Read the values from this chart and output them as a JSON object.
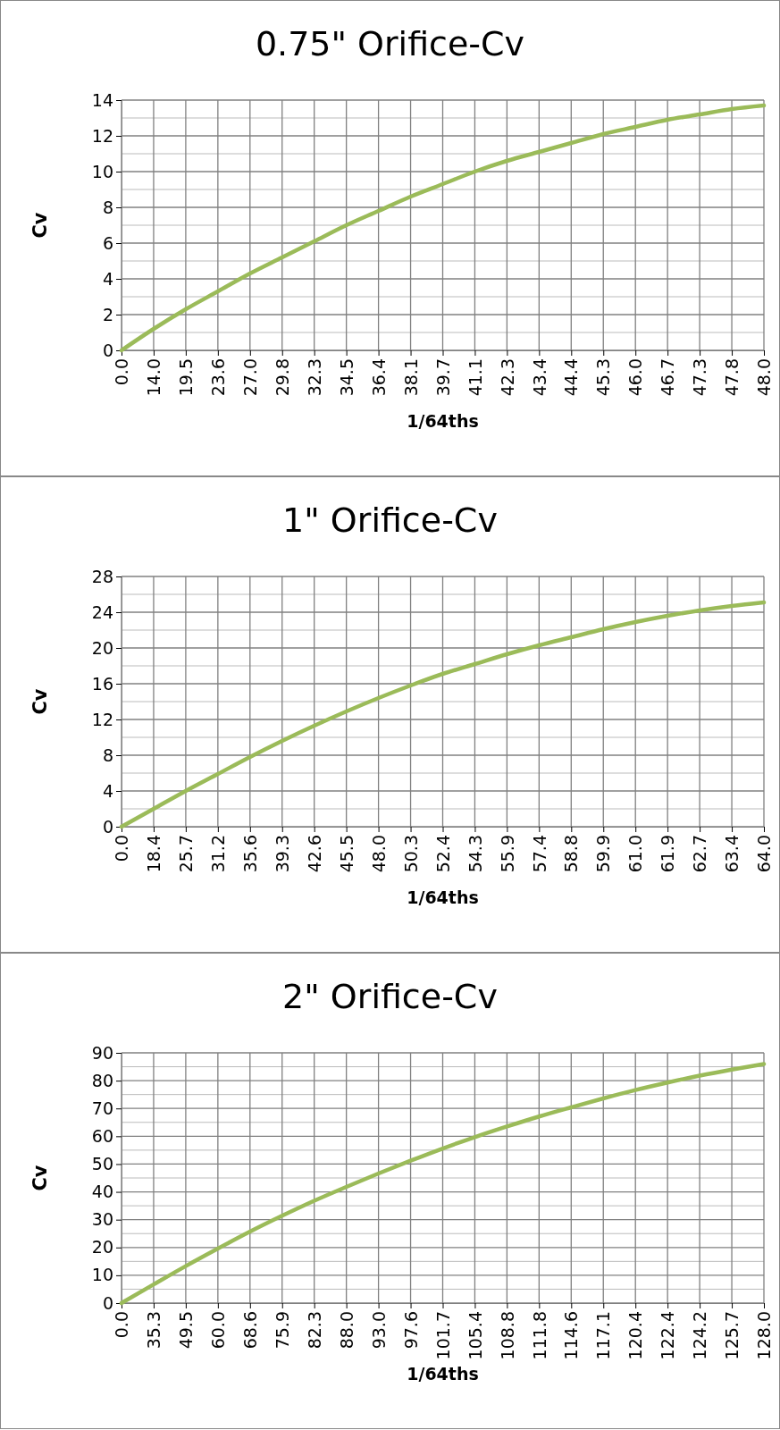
{
  "chart_data": [
    {
      "type": "line",
      "title": "0.75\" Orifice-Cv",
      "xlabel": "1/64ths",
      "ylabel": "Cv",
      "categories": [
        "0.0",
        "14.0",
        "19.5",
        "23.6",
        "27.0",
        "29.8",
        "32.3",
        "34.5",
        "36.4",
        "38.1",
        "39.7",
        "41.1",
        "42.3",
        "43.4",
        "44.4",
        "45.3",
        "46.0",
        "46.7",
        "47.3",
        "47.8",
        "48.0"
      ],
      "series": [
        {
          "color": "#9bbb59",
          "values": [
            0,
            1.2,
            2.3,
            3.3,
            4.3,
            5.2,
            6.1,
            7.0,
            7.8,
            8.6,
            9.3,
            10.0,
            10.6,
            11.1,
            11.6,
            12.1,
            12.5,
            12.9,
            13.2,
            13.5,
            13.7
          ]
        }
      ],
      "ylim": [
        0,
        14
      ],
      "yticks": [
        0,
        2,
        4,
        6,
        8,
        10,
        12,
        14
      ],
      "grid": true,
      "marker": "none",
      "line_style": "solid"
    },
    {
      "type": "line",
      "title": "1\" Orifice-Cv",
      "xlabel": "1/64ths",
      "ylabel": "Cv",
      "categories": [
        "0.0",
        "18.4",
        "25.7",
        "31.2",
        "35.6",
        "39.3",
        "42.6",
        "45.5",
        "48.0",
        "50.3",
        "52.4",
        "54.3",
        "55.9",
        "57.4",
        "58.8",
        "59.9",
        "61.0",
        "61.9",
        "62.7",
        "63.4",
        "64.0"
      ],
      "series": [
        {
          "color": "#9bbb59",
          "values": [
            0,
            2.0,
            4.0,
            5.9,
            7.8,
            9.6,
            11.3,
            12.9,
            14.4,
            15.8,
            17.1,
            18.2,
            19.3,
            20.3,
            21.2,
            22.1,
            22.9,
            23.6,
            24.2,
            24.7,
            25.1
          ]
        }
      ],
      "ylim": [
        0,
        28
      ],
      "yticks": [
        0,
        4,
        8,
        12,
        16,
        20,
        24,
        28
      ],
      "grid": true,
      "marker": "none",
      "line_style": "solid"
    },
    {
      "type": "line",
      "title": "2\" Orifice-Cv",
      "xlabel": "1/64ths",
      "ylabel": "Cv",
      "categories": [
        "0.0",
        "35.3",
        "49.5",
        "60.0",
        "68.6",
        "75.9",
        "82.3",
        "88.0",
        "93.0",
        "97.6",
        "101.7",
        "105.4",
        "108.8",
        "111.8",
        "114.6",
        "117.1",
        "120.4",
        "122.4",
        "124.2",
        "125.7",
        "128.0"
      ],
      "series": [
        {
          "color": "#9bbb59",
          "values": [
            0,
            6.7,
            13.3,
            19.6,
            25.7,
            31.4,
            36.8,
            41.8,
            46.6,
            51.2,
            55.6,
            59.7,
            63.5,
            67.1,
            70.4,
            73.6,
            76.6,
            79.3,
            81.8,
            84.0,
            86.0
          ]
        }
      ],
      "ylim": [
        0,
        90
      ],
      "yticks": [
        0,
        10,
        20,
        30,
        40,
        50,
        60,
        70,
        80,
        90
      ],
      "grid": true,
      "marker": "none",
      "line_style": "solid"
    }
  ]
}
